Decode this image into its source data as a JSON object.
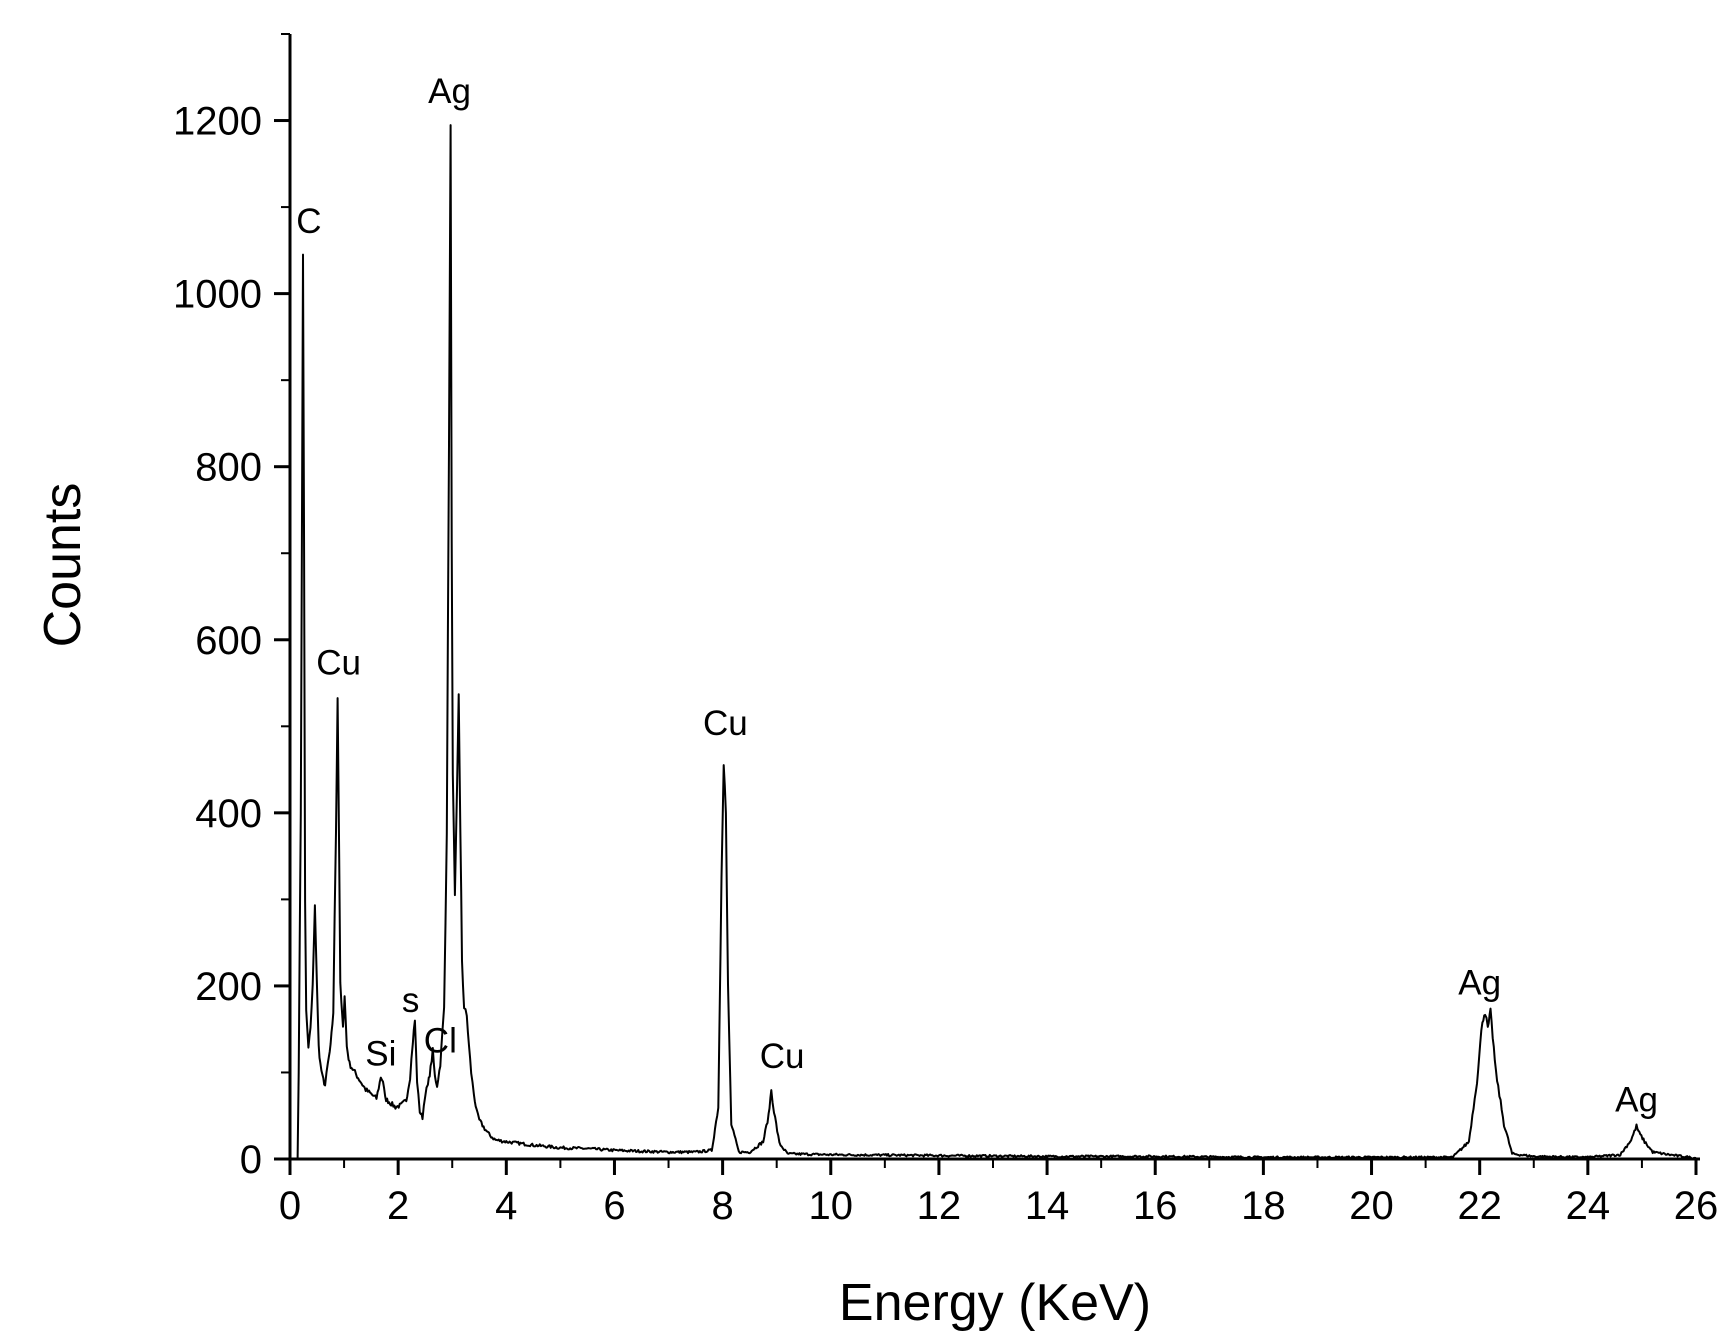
{
  "chart_data": {
    "type": "line",
    "title": "",
    "xlabel": "Energy (KeV)",
    "ylabel": "Counts",
    "xlim": [
      0,
      26
    ],
    "ylim": [
      0,
      1300
    ],
    "x_ticks": [
      0,
      2,
      4,
      6,
      8,
      10,
      12,
      14,
      16,
      18,
      20,
      22,
      24,
      26
    ],
    "y_ticks": [
      0,
      200,
      400,
      600,
      800,
      1000,
      1200
    ],
    "grid": false,
    "legend": "none",
    "line_color": "#000000",
    "series": [
      {
        "x": [
          0.0,
          0.14,
          0.16,
          0.2,
          0.24,
          0.26,
          0.28,
          0.3,
          0.34,
          0.38,
          0.42,
          0.46,
          0.5,
          0.53,
          0.56,
          0.6,
          0.65,
          0.7,
          0.75,
          0.8,
          0.85,
          0.88,
          0.91,
          0.93,
          0.95,
          0.98,
          1.01,
          1.05,
          1.1,
          1.2,
          1.3,
          1.4,
          1.5,
          1.6,
          1.68,
          1.72,
          1.76,
          1.85,
          1.95,
          2.05,
          2.15,
          2.22,
          2.27,
          2.31,
          2.35,
          2.4,
          2.45,
          2.5,
          2.55,
          2.6,
          2.64,
          2.68,
          2.72,
          2.78,
          2.85,
          2.9,
          2.94,
          2.97,
          2.99,
          3.01,
          3.05,
          3.09,
          3.12,
          3.15,
          3.18,
          3.22,
          3.27,
          3.31,
          3.35,
          3.4,
          3.45,
          3.5,
          3.6,
          3.7,
          3.8,
          4.0,
          4.5,
          5.0,
          5.5,
          6.0,
          6.5,
          7.0,
          7.5,
          7.8,
          7.92,
          7.98,
          8.02,
          8.06,
          8.1,
          8.16,
          8.3,
          8.5,
          8.75,
          8.85,
          8.9,
          8.95,
          9.05,
          9.2,
          10.0,
          12.0,
          14.0,
          16.0,
          18.0,
          20.0,
          21.5,
          21.8,
          21.95,
          22.05,
          22.1,
          22.15,
          22.2,
          22.3,
          22.45,
          22.6,
          23.0,
          24.0,
          24.6,
          24.8,
          24.9,
          24.95,
          25.05,
          25.2,
          25.5,
          26.0
        ],
        "y": [
          0,
          0,
          100,
          400,
          1040,
          700,
          300,
          170,
          130,
          150,
          200,
          290,
          200,
          130,
          110,
          95,
          85,
          110,
          130,
          170,
          380,
          535,
          350,
          200,
          180,
          150,
          190,
          130,
          110,
          100,
          90,
          80,
          75,
          70,
          95,
          90,
          70,
          65,
          60,
          62,
          68,
          95,
          135,
          160,
          90,
          55,
          48,
          75,
          85,
          105,
          125,
          95,
          85,
          110,
          175,
          380,
          830,
          1190,
          720,
          440,
          300,
          430,
          540,
          380,
          230,
          175,
          165,
          130,
          100,
          75,
          55,
          45,
          35,
          27,
          22,
          20,
          16,
          13,
          12,
          10,
          9,
          8,
          8,
          10,
          60,
          330,
          460,
          400,
          200,
          40,
          8,
          8,
          20,
          50,
          80,
          55,
          18,
          6,
          5,
          4,
          3,
          3,
          2,
          2,
          2,
          20,
          90,
          160,
          170,
          150,
          170,
          100,
          40,
          6,
          3,
          2,
          5,
          22,
          38,
          30,
          20,
          8,
          5,
          1
        ]
      }
    ],
    "annotations": [
      {
        "text": "C",
        "x": 0.35,
        "y": 1070
      },
      {
        "text": "Cu",
        "x": 0.9,
        "y": 560
      },
      {
        "text": "Si",
        "x": 1.68,
        "y": 108
      },
      {
        "text": "s",
        "x": 2.23,
        "y": 170
      },
      {
        "text": "Cl",
        "x": 2.78,
        "y": 123
      },
      {
        "text": "Ag",
        "x": 2.95,
        "y": 1220
      },
      {
        "text": "Cu",
        "x": 8.05,
        "y": 490
      },
      {
        "text": "Cu",
        "x": 9.1,
        "y": 105
      },
      {
        "text": "Ag",
        "x": 22.0,
        "y": 190
      },
      {
        "text": "Ag",
        "x": 24.9,
        "y": 55
      }
    ]
  }
}
